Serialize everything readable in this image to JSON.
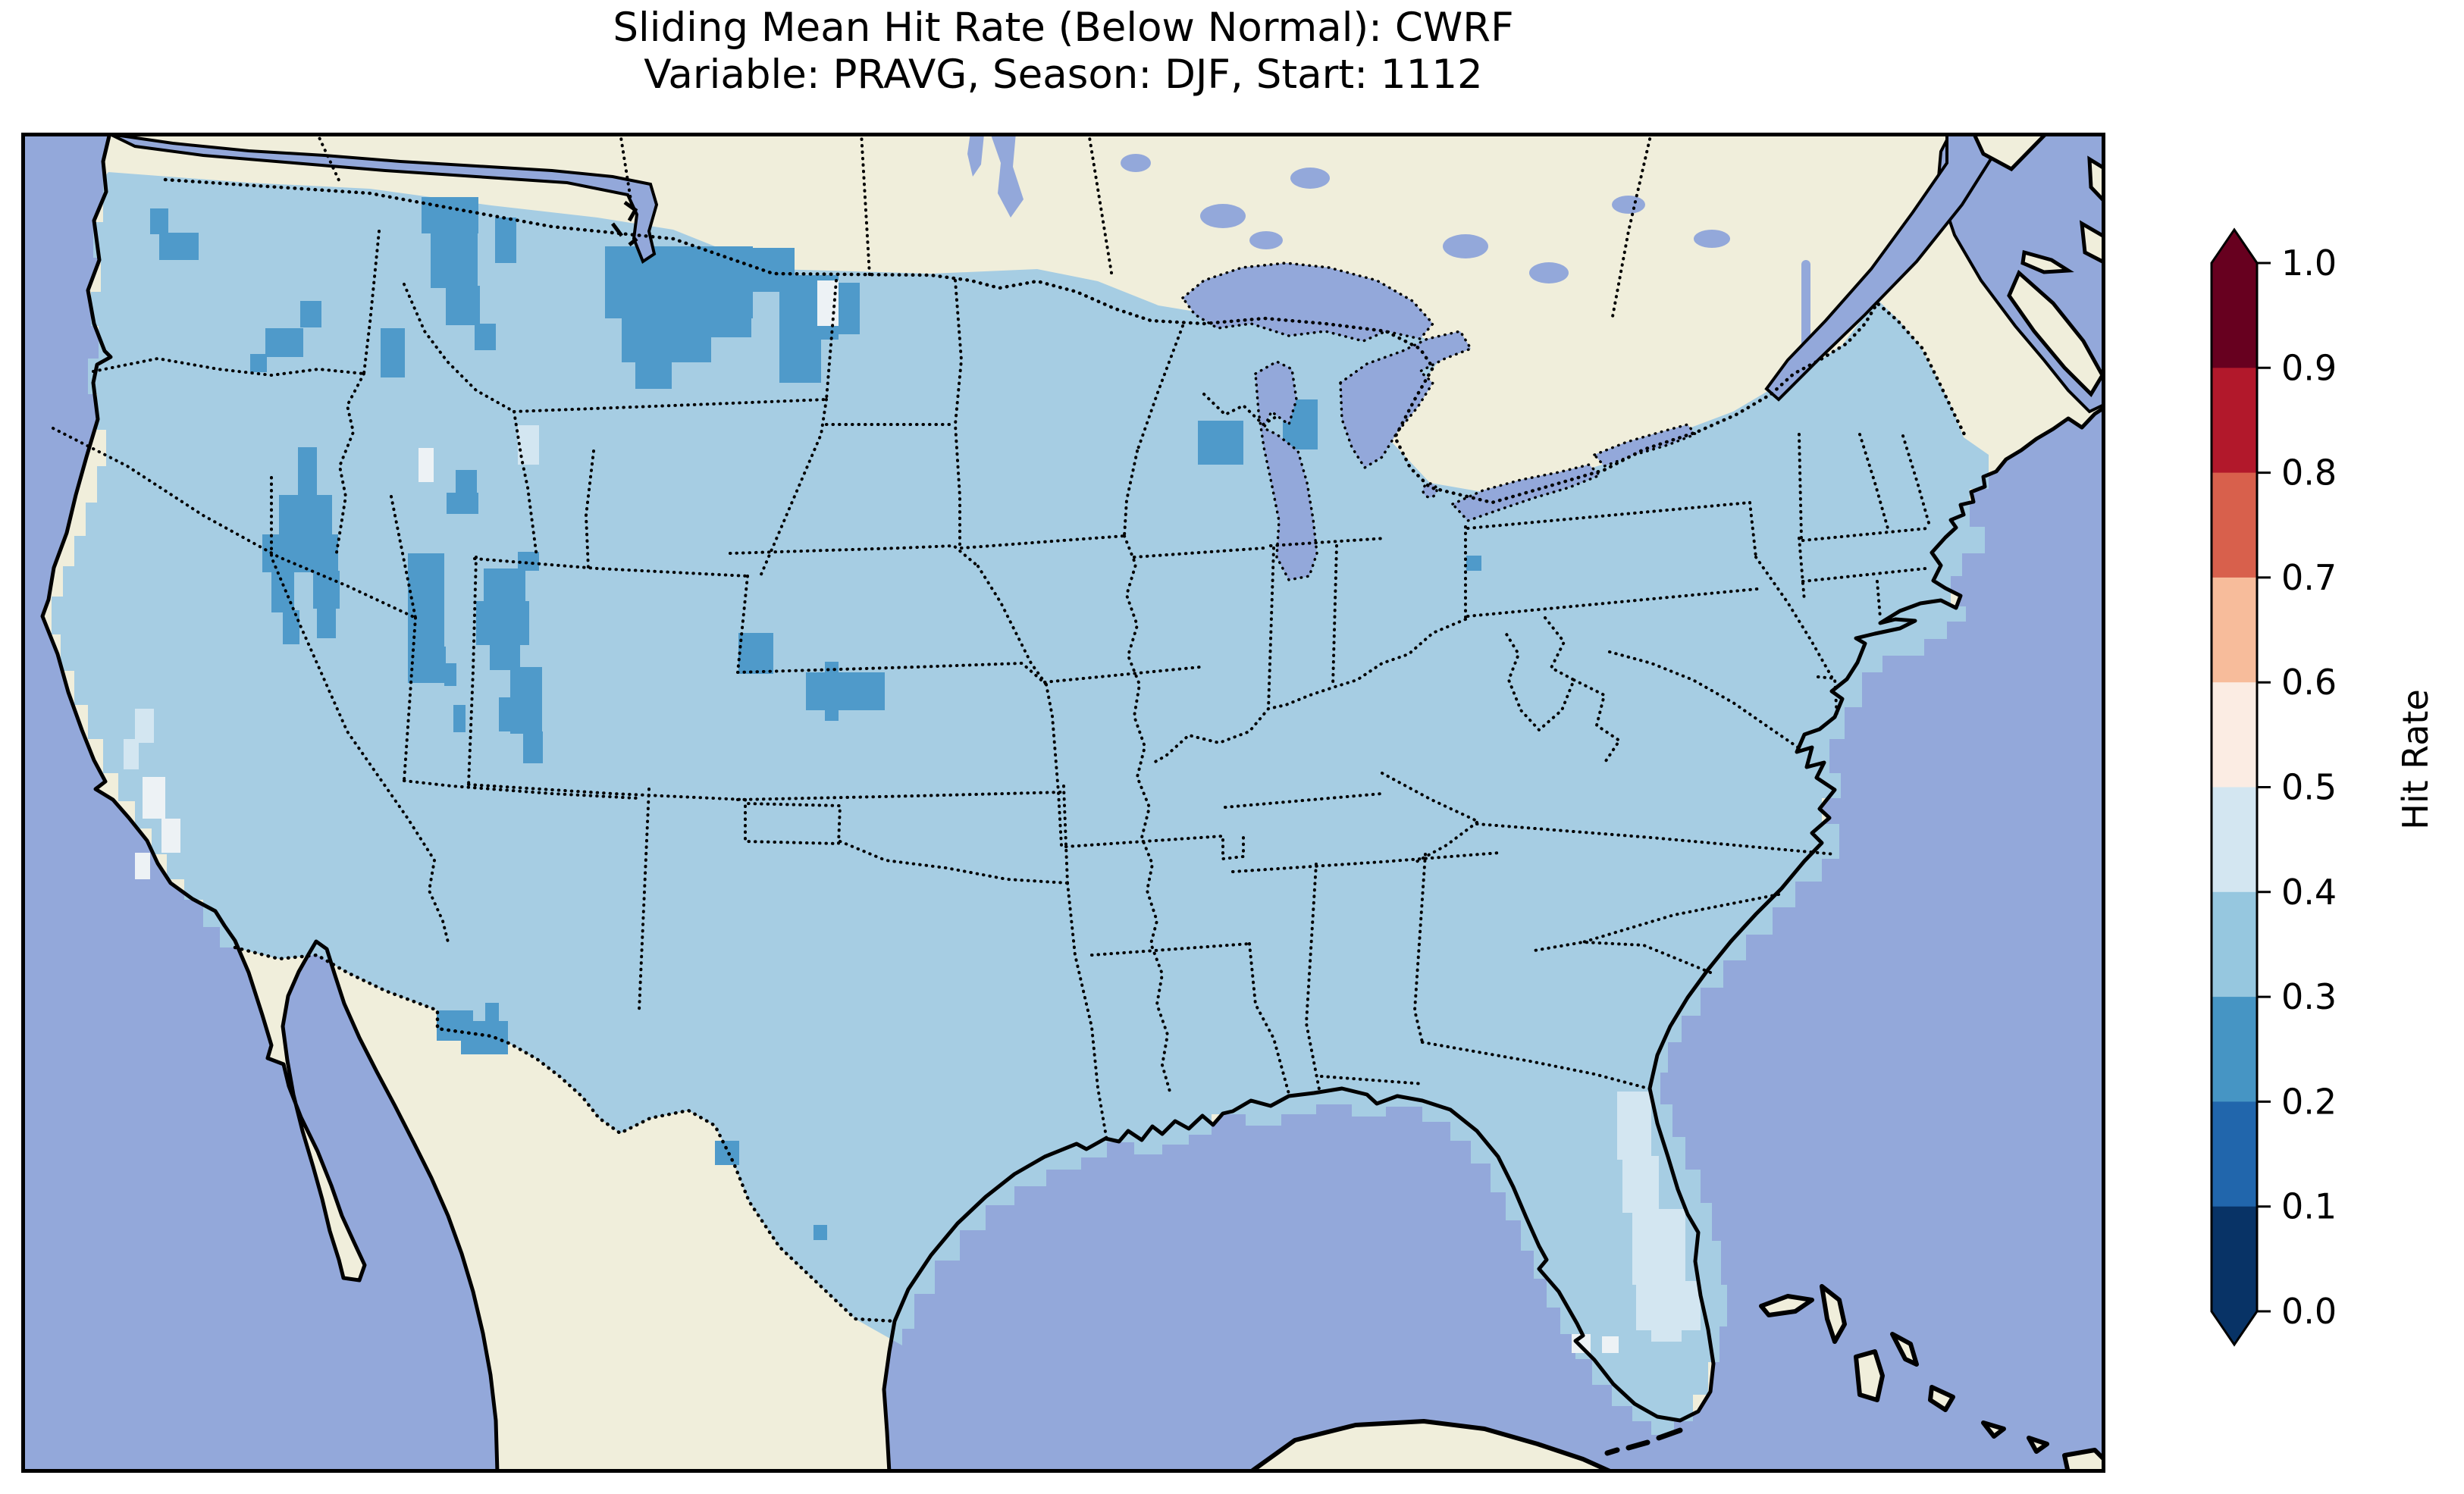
{
  "figure": {
    "title_line1": "Sliding Mean Hit Rate (Below Normal): CWRF",
    "title_line2": "Variable: PRAVG, Season: DJF, Start: 1112"
  },
  "colorbar": {
    "label": "Hit Rate",
    "tick_labels_top_to_bottom": [
      "1.0",
      "0.9",
      "0.8",
      "0.7",
      "0.6",
      "0.5",
      "0.4",
      "0.3",
      "0.2",
      "0.1",
      "0.0"
    ],
    "segment_colors_top_to_bottom": [
      "#67001f",
      "#b2182b",
      "#d8604c",
      "#f7bc9b",
      "#fbece3",
      "#d3e6f1",
      "#96c7df",
      "#4695c4",
      "#2166ac",
      "#083366"
    ],
    "arrow_over_color": "#67001f",
    "arrow_under_color": "#083366"
  },
  "map_colors": {
    "ocean": "#93a8da",
    "land": "#f0eedb",
    "lake": "#93a8da",
    "coastline": "#000000",
    "border": "#000000",
    "frame": "#000000",
    "grid_base": "#a6cde3",
    "bin_0_2_0_3": "#4f9aca",
    "bin_0_4_0_5": "#d3e6f1",
    "bin_0_5_0_6": "#edf2f5"
  },
  "chart_data": {
    "type": "heatmap",
    "title": "Sliding Mean Hit Rate (Below Normal): CWRF",
    "subtitle": "Variable: PRAVG, Season: DJF, Start: 1112",
    "geography": "Contiguous United States with surrounding Canada, Mexico, Caribbean",
    "variable": "PRAVG",
    "season": "DJF",
    "start": "1112",
    "model": "CWRF",
    "colorbar_label": "Hit Rate",
    "colorbar_ticks": [
      0.0,
      0.1,
      0.2,
      0.3,
      0.4,
      0.5,
      0.6,
      0.7,
      0.8,
      0.9,
      1.0
    ],
    "value_bins": [
      {
        "range": [
          0.0,
          0.1
        ],
        "color": "#083366"
      },
      {
        "range": [
          0.1,
          0.2
        ],
        "color": "#2166ac"
      },
      {
        "range": [
          0.2,
          0.3
        ],
        "color": "#4695c4"
      },
      {
        "range": [
          0.3,
          0.4
        ],
        "color": "#96c7df"
      },
      {
        "range": [
          0.4,
          0.5
        ],
        "color": "#d3e6f1"
      },
      {
        "range": [
          0.5,
          0.6
        ],
        "color": "#fbece3"
      },
      {
        "range": [
          0.6,
          0.7
        ],
        "color": "#f7bc9b"
      },
      {
        "range": [
          0.7,
          0.8
        ],
        "color": "#d8604c"
      },
      {
        "range": [
          0.8,
          0.9
        ],
        "color": "#b2182b"
      },
      {
        "range": [
          0.9,
          1.0
        ],
        "color": "#67001f"
      }
    ],
    "base_region": {
      "description": "Most CONUS grid cells",
      "value_bin": "0.3-0.4"
    },
    "patch_groups": [
      {
        "bin": "0.2-0.3",
        "color_key": "bin_0_2_0_3",
        "regions": [
          {
            "name": "washington-coast",
            "rects": [
              [
                182,
                132,
                52,
                36
              ],
              [
                170,
                100,
                24,
                34
              ]
            ]
          },
          {
            "name": "eastern-washington",
            "rects": [
              [
                368,
                222,
                28,
                35
              ],
              [
                322,
                258,
                50,
                38
              ],
              [
                302,
                292,
                22,
                24
              ]
            ]
          },
          {
            "name": "northern-idaho-panhandle",
            "rects": [
              [
                528,
                85,
                75,
                48
              ],
              [
                540,
                130,
                62,
                75
              ],
              [
                560,
                202,
                45,
                52
              ],
              [
                598,
                252,
                28,
                35
              ],
              [
                625,
                112,
                28,
                60
              ],
              [
                474,
                258,
                32,
                65
              ]
            ]
          },
          {
            "name": "north-central-montana",
            "rects": [
              [
                770,
                150,
                195,
                95
              ],
              [
                792,
                243,
                118,
                60
              ],
              [
                810,
                300,
                48,
                38
              ],
              [
                965,
                152,
                55,
                58
              ],
              [
                875,
                240,
                88,
                30
              ]
            ]
          },
          {
            "name": "northeast-montana-north-dakota",
            "rects": [
              [
                1000,
                188,
                78,
                85
              ],
              [
                1000,
                272,
                55,
                58
              ],
              [
                1078,
                198,
                28,
                68
              ]
            ]
          },
          {
            "name": "southwest-montana",
            "rects": [
              [
                573,
                445,
                28,
                30
              ],
              [
                561,
                475,
                42,
                28
              ]
            ]
          },
          {
            "name": "central-nevada",
            "rects": [
              [
                365,
                415,
                25,
                68
              ],
              [
                340,
                478,
                70,
                55
              ],
              [
                318,
                530,
                100,
                50
              ],
              [
                330,
                578,
                30,
                55
              ],
              [
                385,
                578,
                35,
                50
              ],
              [
                345,
                630,
                22,
                45
              ],
              [
                390,
                625,
                25,
                42
              ]
            ]
          },
          {
            "name": "central-utah",
            "rects": [
              [
                510,
                555,
                48,
                125
              ],
              [
                510,
                678,
                50,
                48
              ],
              [
                558,
                700,
                16,
                30
              ]
            ]
          },
          {
            "name": "west-central-colorado",
            "rects": [
              [
                610,
                575,
                55,
                45
              ],
              [
                600,
                618,
                70,
                58
              ],
              [
                618,
                674,
                40,
                35
              ],
              [
                655,
                553,
                28,
                25
              ]
            ]
          },
          {
            "name": "southwest-colorado",
            "rects": [
              [
                645,
                705,
                42,
                88
              ],
              [
                630,
                745,
                20,
                45
              ],
              [
                662,
                790,
                26,
                42
              ]
            ]
          },
          {
            "name": "four-corners-lone-cell",
            "rects": [
              [
                570,
                755,
                16,
                36
              ]
            ]
          },
          {
            "name": "colorado-nebraska-border",
            "rects": [
              [
                946,
                660,
                46,
                54
              ]
            ]
          },
          {
            "name": "nebraska-kansas-border",
            "rects": [
              [
                1035,
                712,
                104,
                50
              ],
              [
                1060,
                698,
                18,
                16
              ],
              [
                1060,
                760,
                18,
                16
              ]
            ]
          },
          {
            "name": "central-wisconsin",
            "rects": [
              [
                1552,
                380,
                60,
                58
              ]
            ]
          },
          {
            "name": "western-michigan",
            "rects": [
              [
                1664,
                352,
                46,
                66
              ]
            ]
          },
          {
            "name": "western-new-york",
            "rects": [
              [
                1906,
                558,
                20,
                20
              ]
            ]
          },
          {
            "name": "new-mexico-bootheel-border",
            "rects": [
              [
                548,
                1158,
                48,
                40
              ],
              [
                580,
                1172,
                62,
                44
              ],
              [
                612,
                1148,
                18,
                26
              ]
            ]
          },
          {
            "name": "rio-grande-big-bend",
            "rects": [
              [
                915,
                1330,
                32,
                32
              ]
            ]
          },
          {
            "name": "south-texas-border",
            "rects": [
              [
                1045,
                1441,
                18,
                20
              ]
            ]
          }
        ]
      },
      {
        "bin": "0.4-0.5",
        "color_key": "bin_0_4_0_5",
        "regions": [
          {
            "name": "northwest-wyoming-yellowstone",
            "rects": [
              [
                655,
                386,
                28,
                52
              ]
            ]
          },
          {
            "name": "eastern-california-light",
            "rects": [
              [
                150,
                760,
                25,
                45
              ],
              [
                135,
                800,
                20,
                40
              ]
            ]
          },
          {
            "name": "florida-east-coast",
            "rects": [
              [
                2105,
                1265,
                45,
                90
              ],
              [
                2112,
                1350,
                48,
                75
              ],
              [
                2125,
                1420,
                70,
                100
              ]
            ]
          },
          {
            "name": "florida-south",
            "rects": [
              [
                2130,
                1515,
                85,
                65
              ],
              [
                2150,
                1560,
                40,
                35
              ]
            ]
          }
        ]
      },
      {
        "bin": "0.5-0.6",
        "color_key": "bin_0_5_0_6",
        "regions": [
          {
            "name": "northeast-utah-white",
            "rects": [
              [
                524,
                416,
                20,
                45
              ]
            ]
          },
          {
            "name": "north-dakota-border-white",
            "rects": [
              [
                1050,
                195,
                28,
                60
              ]
            ]
          },
          {
            "name": "eastern-california-white",
            "rects": [
              [
                160,
                850,
                30,
                55
              ],
              [
                185,
                905,
                25,
                45
              ],
              [
                150,
                950,
                20,
                35
              ]
            ]
          },
          {
            "name": "florida-keys-white",
            "rects": [
              [
                2045,
                1585,
                25,
                25
              ],
              [
                2085,
                1588,
                22,
                22
              ]
            ]
          }
        ]
      }
    ]
  }
}
